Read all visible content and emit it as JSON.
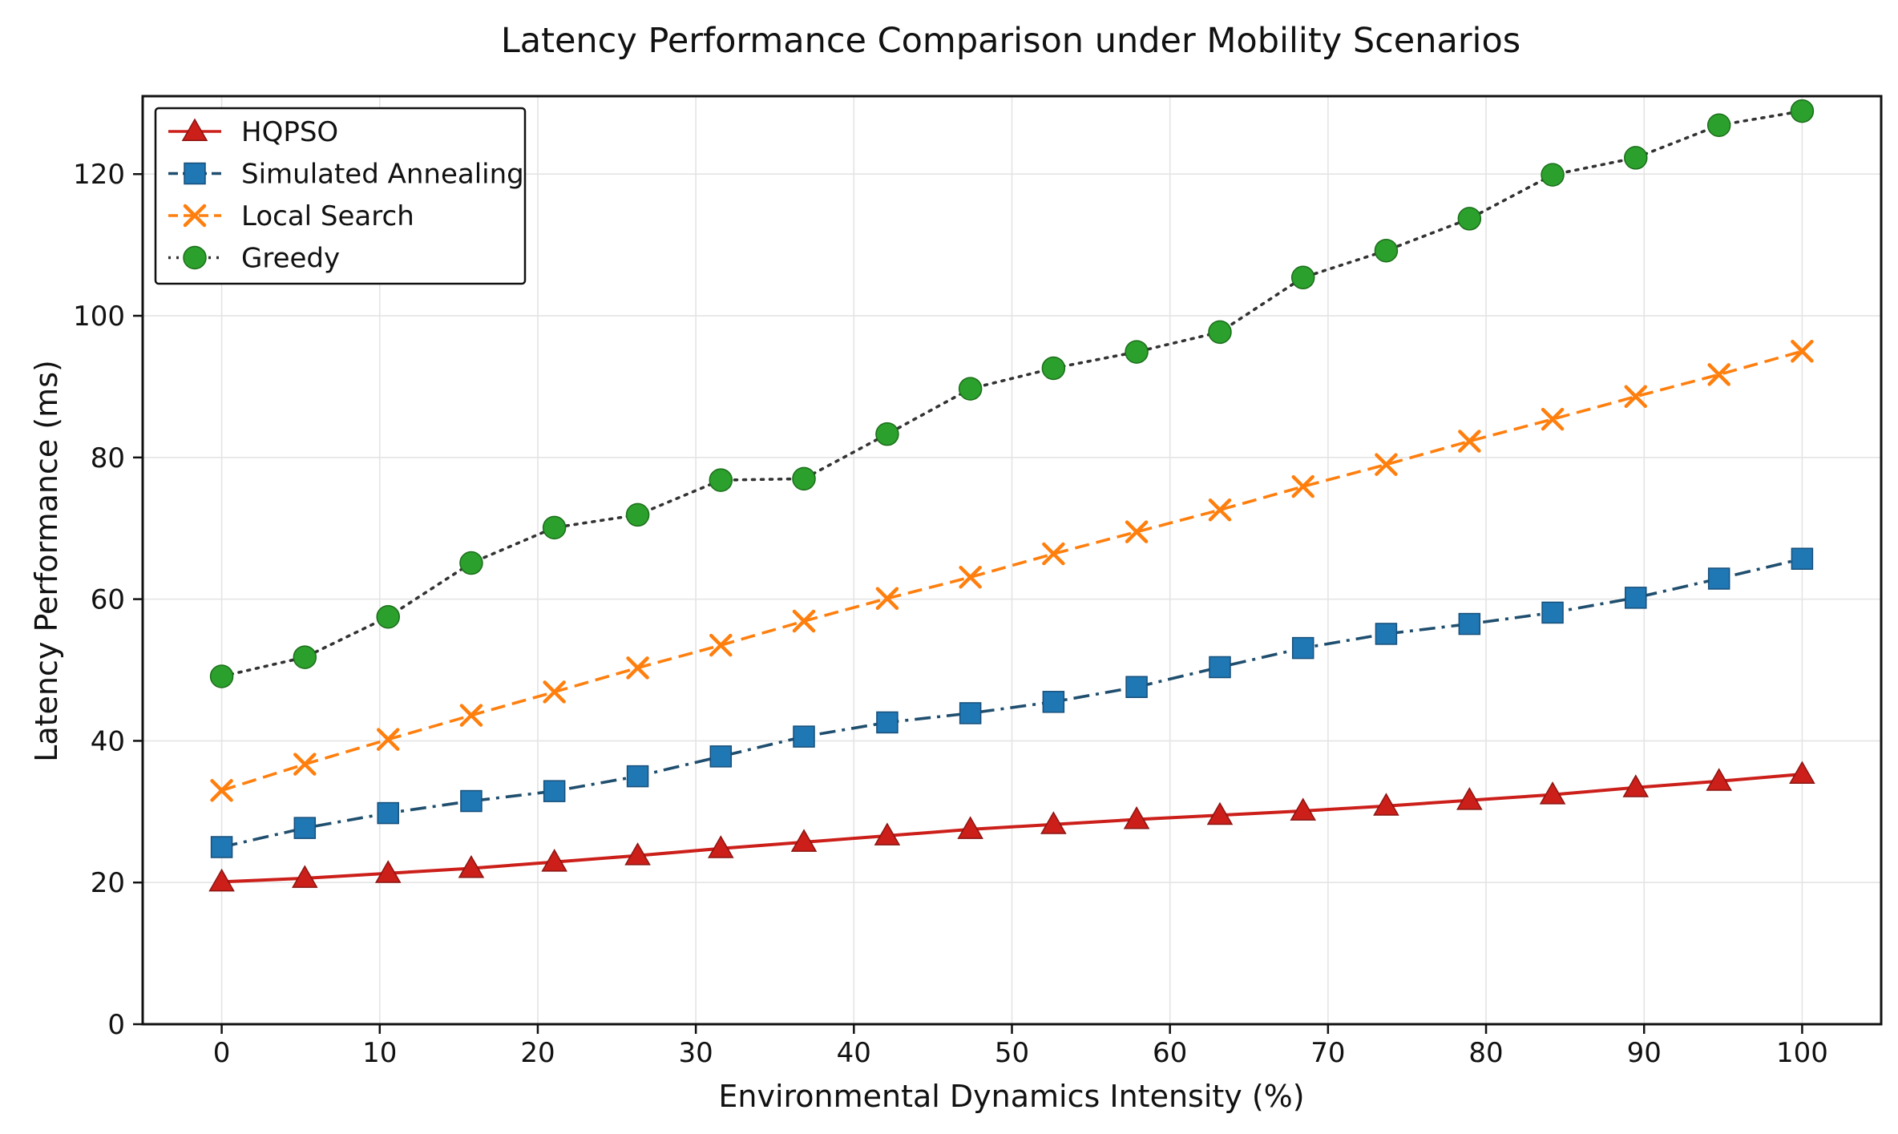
{
  "chart_data": {
    "type": "line",
    "title": "Latency Performance Comparison under Mobility Scenarios",
    "xlabel": "Environmental Dynamics Intensity (%)",
    "ylabel": "Latency Performance (ms)",
    "xlim": [
      -5,
      105
    ],
    "ylim": [
      0,
      131
    ],
    "xticks": [
      0,
      10,
      20,
      30,
      40,
      50,
      60,
      70,
      80,
      90,
      100
    ],
    "yticks": [
      0,
      20,
      40,
      60,
      80,
      100,
      120
    ],
    "grid": true,
    "legend_position": "top-left",
    "x": [
      0,
      5.26,
      10.53,
      15.79,
      21.05,
      26.32,
      31.58,
      36.84,
      42.11,
      47.37,
      52.63,
      57.89,
      63.16,
      68.42,
      73.68,
      78.95,
      84.21,
      89.47,
      94.74,
      100
    ],
    "series": [
      {
        "name": "HQPSO",
        "color": "#cc1f1a",
        "marker": "triangle",
        "line": "solid",
        "values": [
          20.1,
          20.6,
          21.3,
          22.0,
          22.9,
          23.8,
          24.8,
          25.7,
          26.6,
          27.5,
          28.2,
          28.9,
          29.5,
          30.1,
          30.8,
          31.6,
          32.4,
          33.4,
          34.3,
          35.3
        ]
      },
      {
        "name": "Simulated Annealing",
        "color": "#1f77b4",
        "marker": "square",
        "line": "dashdot",
        "values": [
          25.0,
          27.7,
          29.8,
          31.5,
          32.9,
          35.0,
          37.8,
          40.6,
          42.6,
          43.9,
          45.5,
          47.6,
          50.4,
          53.1,
          55.1,
          56.5,
          58.1,
          60.2,
          62.9,
          65.7
        ]
      },
      {
        "name": "Local Search",
        "color": "#ff7f0e",
        "marker": "x",
        "line": "dashed",
        "values": [
          33.0,
          36.7,
          40.2,
          43.6,
          46.9,
          50.3,
          53.5,
          56.9,
          60.1,
          63.1,
          66.4,
          69.5,
          72.6,
          75.9,
          79.0,
          82.3,
          85.4,
          88.6,
          91.7,
          95.0
        ]
      },
      {
        "name": "Greedy",
        "color": "#2ca02c",
        "marker": "circle",
        "line": "dotted",
        "values": [
          49.1,
          51.8,
          57.5,
          65.1,
          70.1,
          71.9,
          76.8,
          77.0,
          83.3,
          89.7,
          92.6,
          94.9,
          97.7,
          105.4,
          109.2,
          113.7,
          119.9,
          122.3,
          126.9,
          128.9
        ]
      }
    ]
  }
}
